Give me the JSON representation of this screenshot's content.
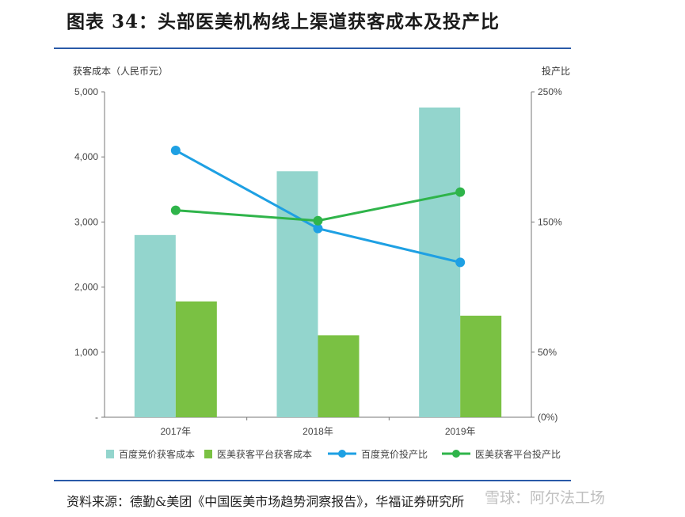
{
  "title": "图表 34：头部医美机构线上渠道获客成本及投产比",
  "source": "资料来源：德勤&美团《中国医美市场趋势洞察报告》，华福证券研究所",
  "watermark": "雪球：阿尔法工场",
  "colors": {
    "rule": "#2a5aa8",
    "bar_baidu": "#93d5cd",
    "bar_platform": "#7ac143",
    "line_baidu": "#1ea0e3",
    "line_platform": "#2fb44a"
  },
  "chart_data": {
    "type": "bar",
    "categories": [
      "2017年",
      "2018年",
      "2019年"
    ],
    "ylabel_left": "获客成本（人民币元）",
    "ylabel_right": "投产比",
    "ylim_left": [
      0,
      5000
    ],
    "ylim_right": [
      0,
      250
    ],
    "left_ticks": [
      "-",
      "1,000",
      "2,000",
      "3,000",
      "4,000",
      "5,000"
    ],
    "right_ticks": [
      "(0%)",
      "50%",
      "150%",
      "250%"
    ],
    "right_tick_values": [
      0,
      50,
      150,
      250
    ],
    "series": [
      {
        "name": "百度竞价获客成本",
        "kind": "bar",
        "axis": "left",
        "color": "#93d5cd",
        "values": [
          2800,
          3780,
          4760
        ]
      },
      {
        "name": "医美获客平台获客成本",
        "kind": "bar",
        "axis": "left",
        "color": "#7ac143",
        "values": [
          1780,
          1260,
          1560
        ]
      },
      {
        "name": "百度竞价投产比",
        "kind": "line",
        "axis": "right",
        "color": "#1ea0e3",
        "values": [
          205,
          145,
          119
        ]
      },
      {
        "name": "医美获客平台投产比",
        "kind": "line",
        "axis": "right",
        "color": "#2fb44a",
        "values": [
          159,
          151,
          173
        ]
      }
    ],
    "grid": false,
    "legend": "bottom"
  }
}
